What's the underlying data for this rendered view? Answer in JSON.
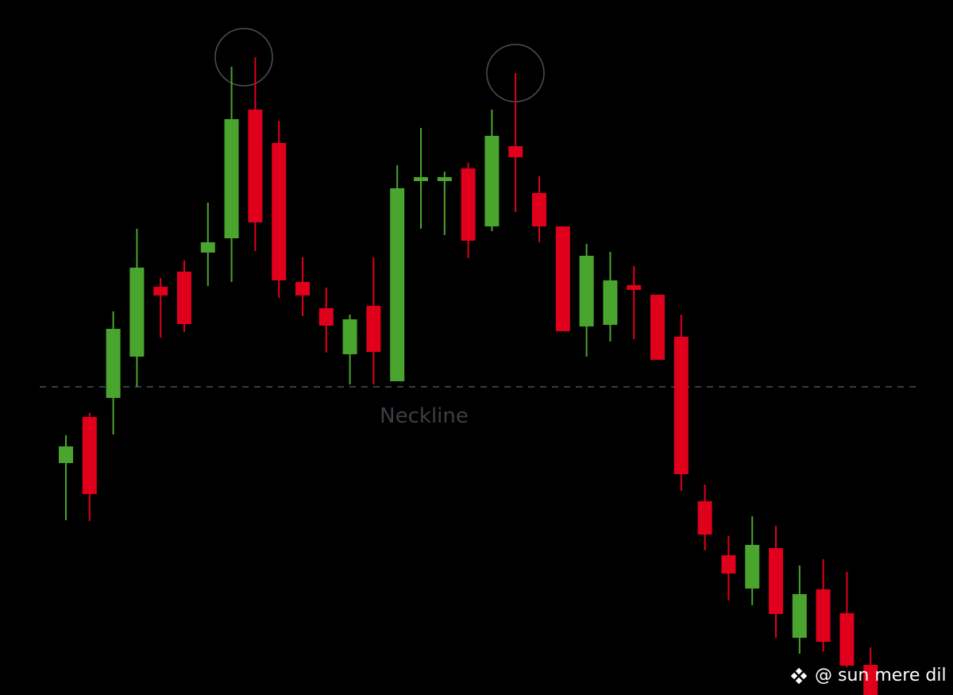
{
  "chart_data": {
    "type": "candlestick",
    "open": [
      29.2,
      35.0,
      37.4,
      42.6,
      51.4,
      53.3,
      55.7,
      57.5,
      73.7,
      69.5,
      52.0,
      48.7,
      42.9,
      49.0,
      39.5,
      64.7,
      64.7,
      66.3,
      59.0,
      69.1,
      63.2,
      59.0,
      46.4,
      46.6,
      51.6,
      50.4,
      45.1,
      24.4,
      17.6,
      13.4,
      18.5,
      7.2,
      13.3,
      10.3,
      3.8
    ],
    "high": [
      32.7,
      35.5,
      48.3,
      58.7,
      52.5,
      54.7,
      62.0,
      79.1,
      80.3,
      72.3,
      55.1,
      51.3,
      47.9,
      55.1,
      66.7,
      71.4,
      65.9,
      67.0,
      73.7,
      78.3,
      65.3,
      59.0,
      56.8,
      55.8,
      54.0,
      50.4,
      47.9,
      26.5,
      20.0,
      22.5,
      21.3,
      16.3,
      17.1,
      15.5,
      6.0
    ],
    "low": [
      22.0,
      21.9,
      32.8,
      38.8,
      45.0,
      45.7,
      51.5,
      52.0,
      55.9,
      50.0,
      47.7,
      43.1,
      39.1,
      39.1,
      39.5,
      58.7,
      57.9,
      55.0,
      58.4,
      60.8,
      57.0,
      45.8,
      42.6,
      44.5,
      44.8,
      42.2,
      25.7,
      18.2,
      11.9,
      11.3,
      7.2,
      5.2,
      5.5,
      3.5,
      0
    ],
    "close": [
      31.3,
      25.3,
      46.1,
      53.8,
      50.3,
      46.7,
      57.0,
      72.5,
      59.5,
      52.2,
      50.3,
      46.5,
      47.3,
      43.2,
      63.8,
      65.2,
      65.2,
      57.2,
      70.4,
      67.7,
      59.0,
      45.8,
      55.3,
      52.2,
      51.0,
      42.2,
      27.8,
      20.2,
      15.3,
      18.9,
      10.2,
      12.7,
      6.7,
      3.7,
      0
    ],
    "up_color": "#4aa52e",
    "down_color": "#e0001b",
    "ylim": [
      0,
      87.5
    ],
    "neckline": {
      "value": 38.8,
      "label": "Neckline"
    },
    "watermark": "@ sun mere dil"
  }
}
